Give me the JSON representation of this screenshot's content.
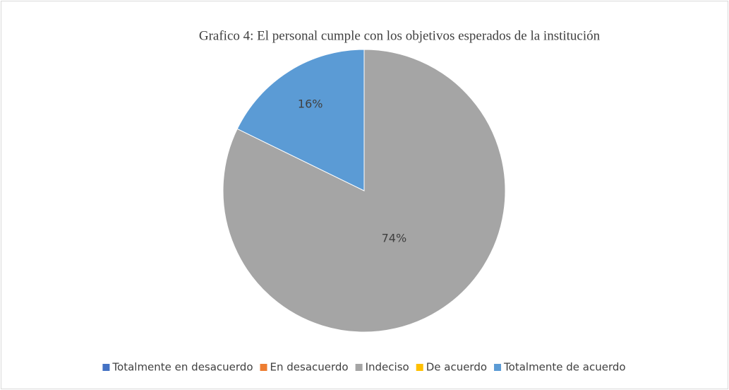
{
  "chart_data": {
    "type": "pie",
    "title": "Grafico 4: El personal cumple con los objetivos esperados de la institución",
    "categories": [
      "Totalmente en desacuerdo",
      "En desacuerdo",
      "Indeciso",
      "De acuerdo",
      "Totalmente de acuerdo"
    ],
    "values": [
      0,
      0,
      74,
      0,
      16
    ],
    "value_labels": [
      null,
      null,
      "74%",
      null,
      "16%"
    ],
    "colors": [
      "#4472c4",
      "#ed7d31",
      "#a5a5a5",
      "#ffc000",
      "#5b9bd5"
    ],
    "legend": "bottom"
  }
}
